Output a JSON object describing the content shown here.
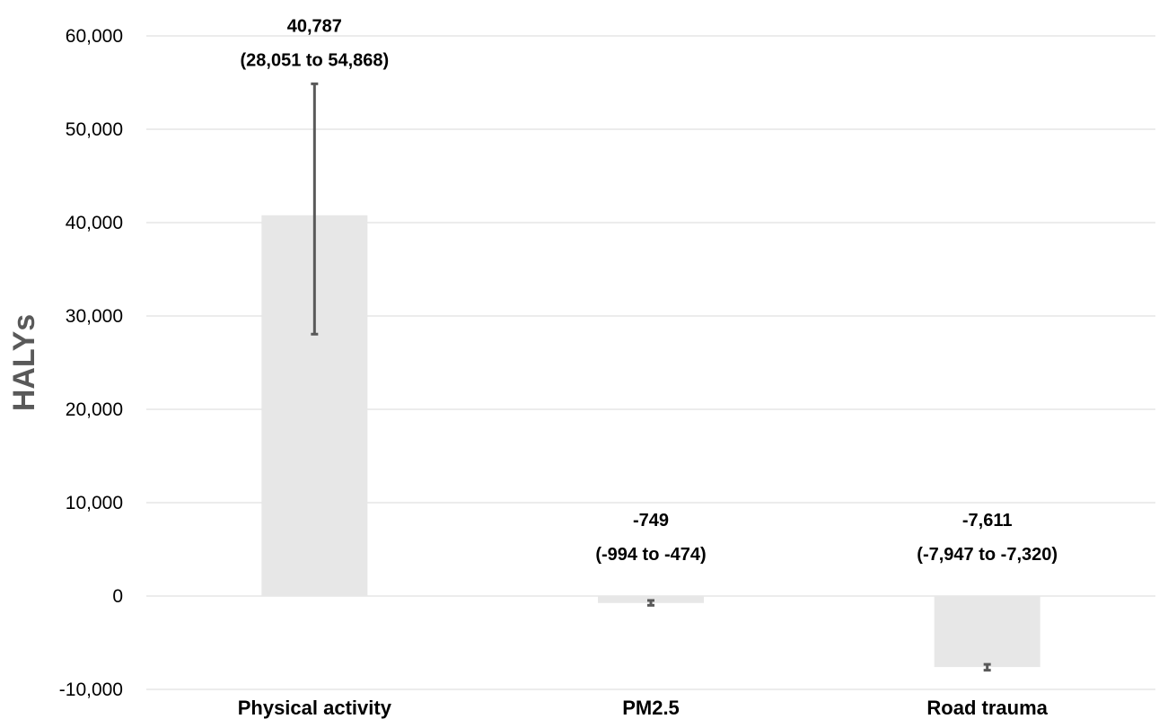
{
  "chart_data": {
    "type": "bar",
    "title": "",
    "xlabel": "",
    "ylabel": "HALYs",
    "ylim": [
      -10000,
      60000
    ],
    "yticks": [
      -10000,
      0,
      10000,
      20000,
      30000,
      40000,
      50000,
      60000
    ],
    "ytick_labels": [
      "-10,000",
      "0",
      "10,000",
      "20,000",
      "30,000",
      "40,000",
      "50,000",
      "60,000"
    ],
    "grid": true,
    "categories": [
      "Physical activity",
      "PM2.5",
      "Road trauma"
    ],
    "values": [
      40787,
      -749,
      -7611
    ],
    "error_low": [
      28051,
      -994,
      -7947
    ],
    "error_high": [
      54868,
      -474,
      -7320
    ],
    "data_labels": [
      {
        "value": "40,787",
        "interval": "(28,051 to 54,868)"
      },
      {
        "value": "-749",
        "interval": "(-994 to -474)"
      },
      {
        "value": "-7,611",
        "interval": "(-7,947 to -7,320)"
      }
    ],
    "colors": {
      "bar": "#e7e7e7",
      "error_bar": "#595959",
      "grid": "#d9d9d9",
      "axis_title": "#595959"
    }
  }
}
